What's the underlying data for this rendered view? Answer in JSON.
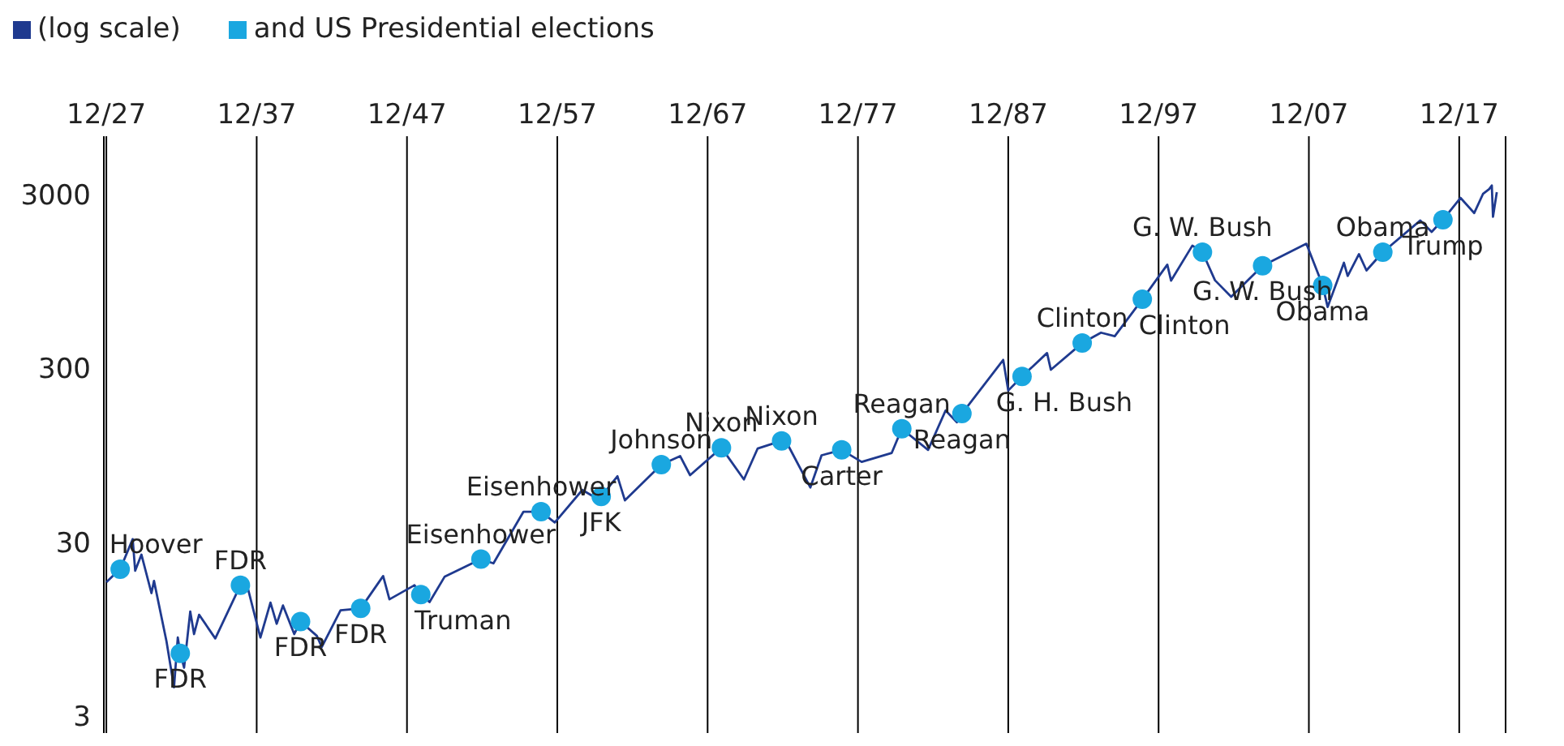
{
  "chart_data": {
    "type": "line",
    "log": "y",
    "legend": "top left",
    "grid": "x",
    "xlim": [
      "1927-10",
      "2021-01"
    ],
    "ylim": [
      2.4,
      6500
    ],
    "yticks": [
      3,
      30,
      300,
      3000
    ],
    "xticks": [
      {
        "value": "1927-12",
        "label": "12/27"
      },
      {
        "value": "1937-12",
        "label": "12/37"
      },
      {
        "value": "1947-12",
        "label": "12/47"
      },
      {
        "value": "1957-12",
        "label": "12/57"
      },
      {
        "value": "1967-12",
        "label": "12/67"
      },
      {
        "value": "1977-12",
        "label": "12/77"
      },
      {
        "value": "1987-12",
        "label": "12/87"
      },
      {
        "value": "1997-12",
        "label": "12/97"
      },
      {
        "value": "2007-12",
        "label": "12/07"
      },
      {
        "value": "2017-12",
        "label": "12/17"
      }
    ],
    "series": [
      {
        "name": "(log scale)",
        "color": "#1f3a8f",
        "x": [
          "1927-12",
          "1928-06",
          "1928-11",
          "1929-09",
          "1929-11",
          "1930-04",
          "1930-12",
          "1931-02",
          "1931-12",
          "1932-06",
          "1932-09",
          "1932-11",
          "1933-02",
          "1933-07",
          "1933-10",
          "1934-02",
          "1935-03",
          "1936-11",
          "1937-03",
          "1938-03",
          "1938-11",
          "1939-04",
          "1939-09",
          "1940-06",
          "1940-11",
          "1941-12",
          "1942-04",
          "1943-07",
          "1944-11",
          "1946-05",
          "1946-10",
          "1948-06",
          "1948-11",
          "1949-06",
          "1950-06",
          "1952-11",
          "1953-09",
          "1955-09",
          "1956-11",
          "1957-10",
          "1959-08",
          "1960-10",
          "1960-11",
          "1961-12",
          "1962-06",
          "1964-11",
          "1966-02",
          "1966-10",
          "1968-11",
          "1970-05",
          "1971-04",
          "1972-11",
          "1973-01",
          "1974-10",
          "1975-07",
          "1976-11",
          "1978-03",
          "1980-03",
          "1980-11",
          "1982-08",
          "1983-10",
          "1984-07",
          "1984-11",
          "1987-08",
          "1987-12",
          "1988-11",
          "1990-07",
          "1990-10",
          "1992-11",
          "1994-02",
          "1995-01",
          "1996-11",
          "1998-07",
          "1998-10",
          "2000-03",
          "2000-11",
          "2001-09",
          "2002-10",
          "2004-11",
          "2007-10",
          "2008-11",
          "2009-03",
          "2010-04",
          "2010-07",
          "2011-04",
          "2011-10",
          "2012-11",
          "2015-05",
          "2016-02",
          "2016-11",
          "2018-01",
          "2018-12",
          "2019-07",
          "2019-12",
          "2020-02",
          "2020-03",
          "2020-06"
        ],
        "values": [
          17.7,
          19.5,
          21,
          31.3,
          20.6,
          25.5,
          15.3,
          18,
          8.1,
          4.4,
          8.5,
          6.9,
          5.7,
          12,
          8.9,
          11.5,
          8.4,
          17,
          18.6,
          8.5,
          13.5,
          10.2,
          13,
          8.9,
          10.5,
          8.7,
          7.5,
          12.2,
          12.5,
          19.2,
          14.1,
          17,
          15,
          13.6,
          19,
          24,
          22.7,
          45,
          45,
          39,
          60,
          52.3,
          55,
          72,
          52.3,
          84,
          94,
          73,
          105,
          69,
          104,
          115,
          120,
          62,
          95,
          102,
          87,
          98,
          135,
          102,
          172,
          147,
          165,
          336,
          224,
          270,
          368,
          295,
          420,
          482,
          460,
          750,
          1186,
          960,
          1527,
          1400,
          965,
          776,
          1170,
          1565,
          900,
          677,
          1217,
          1022,
          1363,
          1099,
          1400,
          2130,
          1829,
          2150,
          2872,
          2351,
          3025,
          3230,
          3386,
          2237,
          3100
        ]
      },
      {
        "name": "and US Presidential elections",
        "type": "scatter",
        "color": "#1aa7e0",
        "x": [
          "1928-11",
          "1932-11",
          "1936-11",
          "1940-11",
          "1944-11",
          "1948-11",
          "1952-11",
          "1956-11",
          "1960-11",
          "1964-11",
          "1968-11",
          "1972-11",
          "1976-11",
          "1980-11",
          "1984-11",
          "1988-11",
          "1992-11",
          "1996-11",
          "2000-11",
          "2004-11",
          "2008-11",
          "2012-11",
          "2016-11"
        ],
        "values": [
          21,
          6.9,
          17,
          10.5,
          12.5,
          15,
          24,
          45,
          55,
          84,
          105,
          115,
          102,
          135,
          165,
          270,
          420,
          750,
          1400,
          1170,
          900,
          1400,
          2150
        ]
      }
    ],
    "annotations": [
      {
        "text": "Hoover",
        "x": "1928-11",
        "y": 21
      },
      {
        "text": "FDR",
        "x": "1932-11",
        "y": 6.9
      },
      {
        "text": "FDR",
        "x": "1936-11",
        "y": 17
      },
      {
        "text": "FDR",
        "x": "1940-11",
        "y": 10.5
      },
      {
        "text": "FDR",
        "x": "1944-11",
        "y": 12.5
      },
      {
        "text": "Truman",
        "x": "1948-11",
        "y": 15
      },
      {
        "text": "Eisenhower",
        "x": "1952-11",
        "y": 24
      },
      {
        "text": "Eisenhower",
        "x": "1956-11",
        "y": 45
      },
      {
        "text": "JFK",
        "x": "1960-11",
        "y": 55
      },
      {
        "text": "Johnson",
        "x": "1964-11",
        "y": 84
      },
      {
        "text": "Nixon",
        "x": "1968-11",
        "y": 105
      },
      {
        "text": "Nixon",
        "x": "1972-11",
        "y": 115
      },
      {
        "text": "Carter",
        "x": "1976-11",
        "y": 102
      },
      {
        "text": "Reagan",
        "x": "1980-11",
        "y": 135
      },
      {
        "text": "Reagan",
        "x": "1984-11",
        "y": 165
      },
      {
        "text": "G. H. Bush",
        "x": "1988-11",
        "y": 270
      },
      {
        "text": "Clinton",
        "x": "1992-11",
        "y": 420
      },
      {
        "text": "Clinton",
        "x": "1996-11",
        "y": 750
      },
      {
        "text": "G. W. Bush",
        "x": "2000-11",
        "y": 1400
      },
      {
        "text": "G. W. Bush",
        "x": "2004-11",
        "y": 1170
      },
      {
        "text": "Obama",
        "x": "2008-11",
        "y": 900
      },
      {
        "text": "Obama",
        "x": "2012-11",
        "y": 1400
      },
      {
        "text": "Trump",
        "x": "2016-11",
        "y": 2150
      }
    ]
  }
}
